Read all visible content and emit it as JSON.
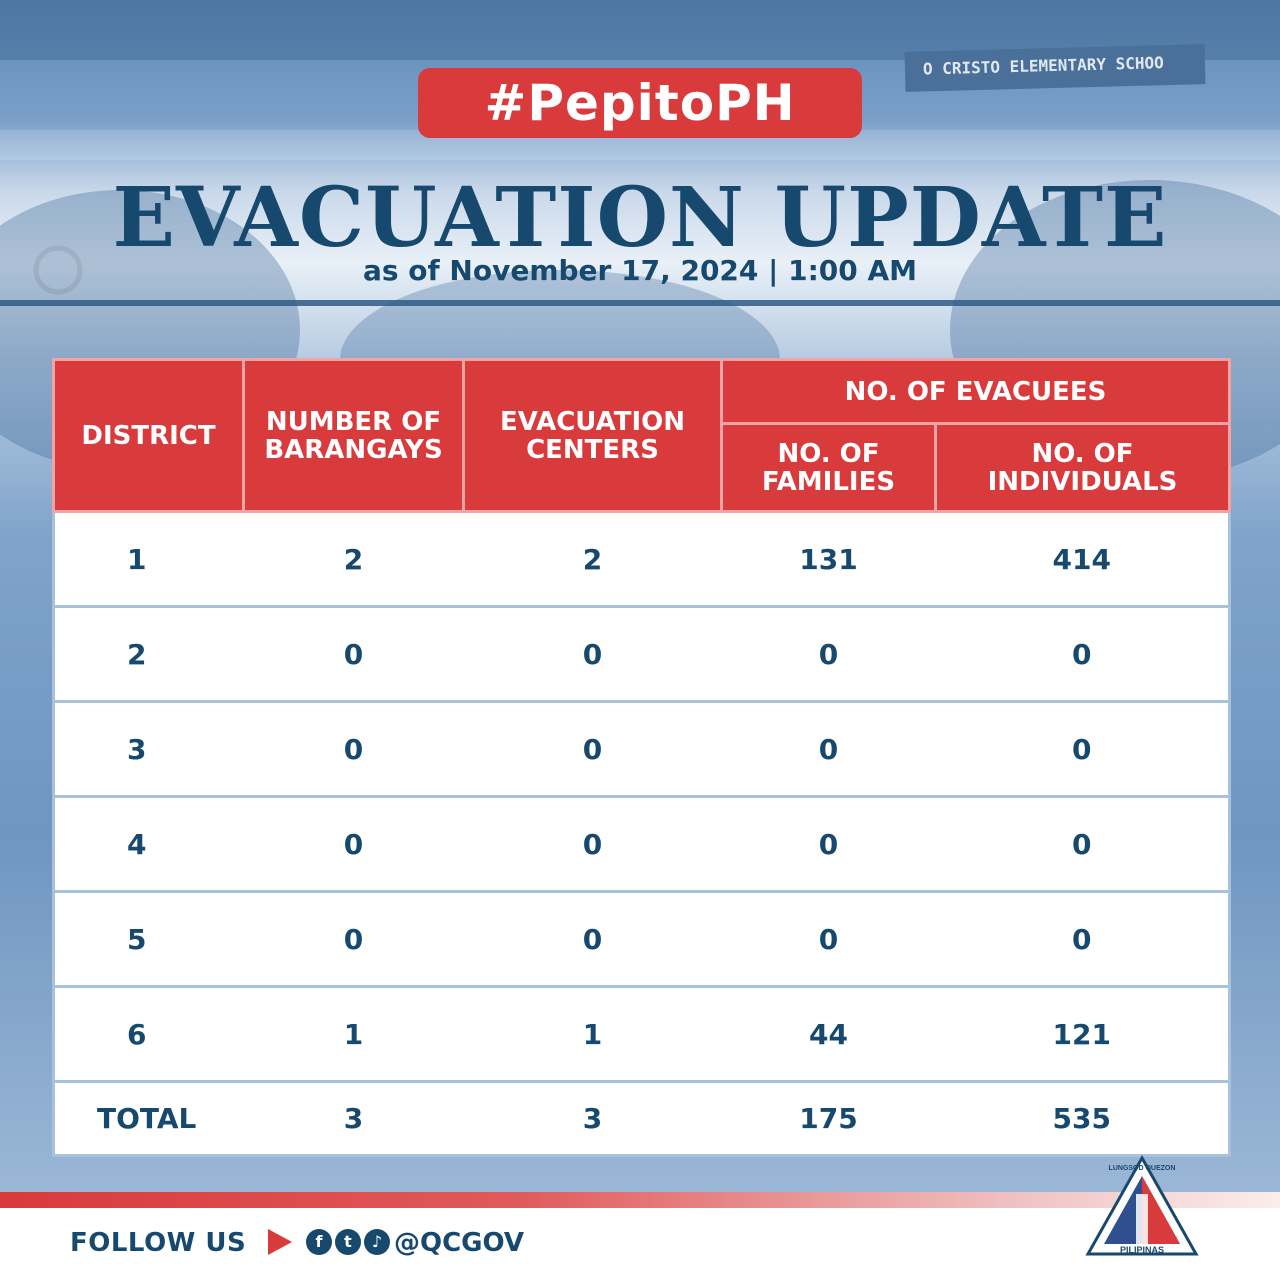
{
  "header": {
    "hashtag": "#PepitoPH",
    "title": "EVACUATION UPDATE",
    "subtitle": "as of November 17, 2024 | 1:00 AM",
    "background_sign": "O CRISTO ELEMENTARY SCHOO"
  },
  "table": {
    "headers": {
      "district": "DISTRICT",
      "barangays": "NUMBER OF BARANGAYS",
      "centers": "EVACUATION CENTERS",
      "evacuees_group": "NO. OF EVACUEES",
      "families": "NO. OF FAMILIES",
      "individuals": "NO. OF INDIVIDUALS"
    },
    "rows": [
      {
        "district": "1",
        "barangays": "2",
        "centers": "2",
        "families": "131",
        "individuals": "414"
      },
      {
        "district": "2",
        "barangays": "0",
        "centers": "0",
        "families": "0",
        "individuals": "0"
      },
      {
        "district": "3",
        "barangays": "0",
        "centers": "0",
        "families": "0",
        "individuals": "0"
      },
      {
        "district": "4",
        "barangays": "0",
        "centers": "0",
        "families": "0",
        "individuals": "0"
      },
      {
        "district": "5",
        "barangays": "0",
        "centers": "0",
        "families": "0",
        "individuals": "0"
      },
      {
        "district": "6",
        "barangays": "1",
        "centers": "1",
        "families": "44",
        "individuals": "121"
      }
    ],
    "total": {
      "label": "TOTAL",
      "barangays": "3",
      "centers": "3",
      "families": "175",
      "individuals": "535"
    }
  },
  "footer": {
    "follow_label": "FOLLOW US",
    "handle": "@QCGOV",
    "social_icons": [
      "facebook-icon",
      "twitter-icon",
      "tiktok-icon"
    ],
    "seal_text_top": "LUNGSOD QUEZON",
    "seal_text_bottom": "PILIPINAS"
  },
  "colors": {
    "accent_red": "#d93a3c",
    "navy": "#17496f",
    "row_border": "#a9c2db"
  }
}
